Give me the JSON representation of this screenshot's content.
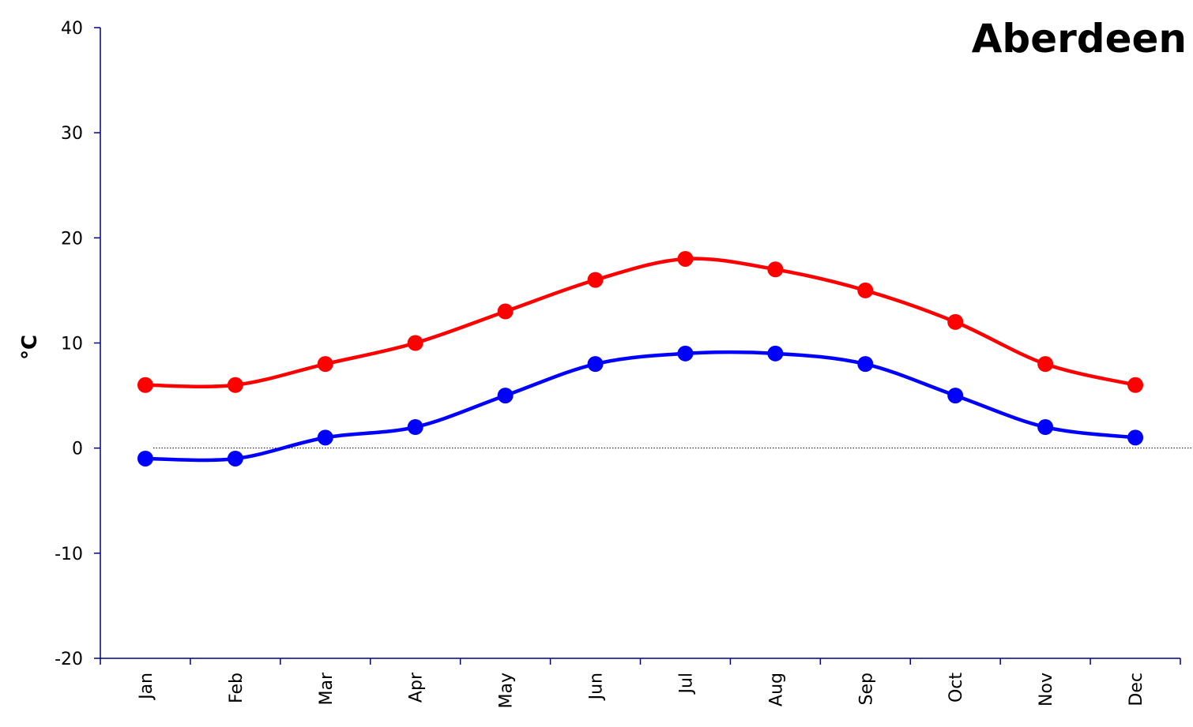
{
  "chart_data": {
    "type": "line",
    "title": "Aberdeen",
    "xlabel": "",
    "ylabel": "°C",
    "categories": [
      "Jan",
      "Feb",
      "Mar",
      "Apr",
      "May",
      "Jun",
      "Jul",
      "Aug",
      "Sep",
      "Oct",
      "Nov",
      "Dec"
    ],
    "series": [
      {
        "color": "#ff0000",
        "values": [
          6,
          6,
          8,
          10,
          13,
          16,
          18,
          17,
          15,
          12,
          8,
          6
        ]
      },
      {
        "color": "#0000ff",
        "values": [
          -1,
          -1,
          1,
          2,
          5,
          8,
          9,
          9,
          8,
          5,
          2,
          1
        ]
      }
    ],
    "ylim": [
      -20,
      40
    ],
    "yticks": [
      -20,
      -10,
      0,
      10,
      20,
      30,
      40
    ],
    "zero_line": true,
    "axis_color": "#000080",
    "grid": false,
    "legend": "none"
  }
}
